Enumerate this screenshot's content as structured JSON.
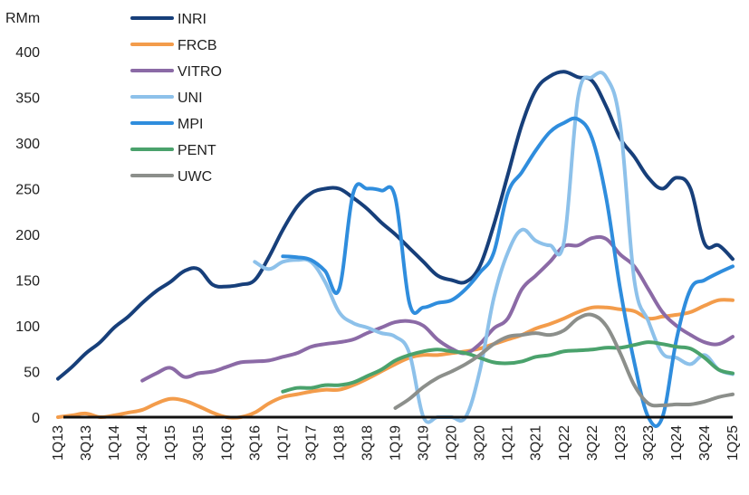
{
  "chart_data": {
    "type": "line",
    "ylabel": "RMm",
    "ylim": [
      0,
      400
    ],
    "y_ticks": [
      "0",
      "50",
      "100",
      "150",
      "200",
      "250",
      "300",
      "350",
      "400"
    ],
    "x_ticks": [
      "1Q13",
      "3Q13",
      "1Q14",
      "3Q14",
      "1Q15",
      "3Q15",
      "1Q16",
      "3Q16",
      "1Q17",
      "3Q17",
      "1Q18",
      "3Q18",
      "1Q19",
      "3Q19",
      "1Q20",
      "3Q20",
      "1Q21",
      "3Q21",
      "1Q22",
      "3Q22",
      "1Q23",
      "3Q23",
      "1Q24",
      "3Q24",
      "1Q25"
    ],
    "grid": false,
    "legend_position": "top-left",
    "series": [
      {
        "name": "INRI",
        "color": "#173f7a",
        "values": [
          [
            "1Q13",
            42
          ],
          [
            "2Q13",
            55
          ],
          [
            "3Q13",
            70
          ],
          [
            "4Q13",
            82
          ],
          [
            "1Q14",
            98
          ],
          [
            "2Q14",
            110
          ],
          [
            "3Q14",
            125
          ],
          [
            "4Q14",
            138
          ],
          [
            "1Q15",
            148
          ],
          [
            "2Q15",
            160
          ],
          [
            "3Q15",
            162
          ],
          [
            "4Q15",
            145
          ],
          [
            "1Q16",
            143
          ],
          [
            "2Q16",
            145
          ],
          [
            "3Q16",
            150
          ],
          [
            "4Q16",
            175
          ],
          [
            "1Q17",
            205
          ],
          [
            "2Q17",
            230
          ],
          [
            "3Q17",
            245
          ],
          [
            "4Q17",
            250
          ],
          [
            "1Q18",
            250
          ],
          [
            "2Q18",
            240
          ],
          [
            "3Q18",
            228
          ],
          [
            "4Q18",
            213
          ],
          [
            "1Q19",
            200
          ],
          [
            "2Q19",
            185
          ],
          [
            "3Q19",
            170
          ],
          [
            "4Q19",
            155
          ],
          [
            "1Q20",
            150
          ],
          [
            "2Q20",
            148
          ],
          [
            "3Q20",
            165
          ],
          [
            "4Q20",
            210
          ],
          [
            "1Q21",
            265
          ],
          [
            "2Q21",
            320
          ],
          [
            "3Q21",
            358
          ],
          [
            "4Q21",
            373
          ],
          [
            "1Q22",
            378
          ],
          [
            "2Q22",
            372
          ],
          [
            "3Q22",
            368
          ],
          [
            "4Q22",
            340
          ],
          [
            "1Q23",
            305
          ],
          [
            "2Q23",
            285
          ],
          [
            "3Q23",
            262
          ],
          [
            "4Q23",
            250
          ],
          [
            "1Q24",
            262
          ],
          [
            "2Q24",
            250
          ],
          [
            "3Q24",
            190
          ],
          [
            "4Q24",
            188
          ],
          [
            "1Q25",
            173
          ]
        ]
      },
      {
        "name": "FRCB",
        "color": "#f39c4b",
        "values": [
          [
            "1Q13",
            0
          ],
          [
            "2Q13",
            2
          ],
          [
            "3Q13",
            4
          ],
          [
            "4Q13",
            0
          ],
          [
            "1Q14",
            2
          ],
          [
            "2Q14",
            5
          ],
          [
            "3Q14",
            8
          ],
          [
            "4Q14",
            15
          ],
          [
            "1Q15",
            20
          ],
          [
            "2Q15",
            18
          ],
          [
            "3Q15",
            12
          ],
          [
            "4Q15",
            5
          ],
          [
            "1Q16",
            0
          ],
          [
            "2Q16",
            0
          ],
          [
            "3Q16",
            5
          ],
          [
            "4Q16",
            15
          ],
          [
            "1Q17",
            22
          ],
          [
            "2Q17",
            25
          ],
          [
            "3Q17",
            28
          ],
          [
            "4Q17",
            30
          ],
          [
            "1Q18",
            30
          ],
          [
            "2Q18",
            35
          ],
          [
            "3Q18",
            42
          ],
          [
            "4Q18",
            50
          ],
          [
            "1Q19",
            58
          ],
          [
            "2Q19",
            65
          ],
          [
            "3Q19",
            68
          ],
          [
            "4Q19",
            68
          ],
          [
            "1Q20",
            70
          ],
          [
            "2Q20",
            72
          ],
          [
            "3Q20",
            75
          ],
          [
            "4Q20",
            80
          ],
          [
            "1Q21",
            85
          ],
          [
            "2Q21",
            90
          ],
          [
            "3Q21",
            97
          ],
          [
            "4Q21",
            102
          ],
          [
            "1Q22",
            108
          ],
          [
            "2Q22",
            115
          ],
          [
            "3Q22",
            120
          ],
          [
            "4Q22",
            120
          ],
          [
            "1Q23",
            118
          ],
          [
            "2Q23",
            116
          ],
          [
            "3Q23",
            108
          ],
          [
            "4Q23",
            110
          ],
          [
            "1Q24",
            112
          ],
          [
            "2Q24",
            115
          ],
          [
            "3Q24",
            122
          ],
          [
            "4Q24",
            128
          ],
          [
            "1Q25",
            128
          ]
        ]
      },
      {
        "name": "VITRO",
        "color": "#8b6aa6",
        "values": [
          [
            "3Q14",
            40
          ],
          [
            "4Q14",
            48
          ],
          [
            "1Q15",
            54
          ],
          [
            "2Q15",
            44
          ],
          [
            "3Q15",
            48
          ],
          [
            "4Q15",
            50
          ],
          [
            "1Q16",
            55
          ],
          [
            "2Q16",
            60
          ],
          [
            "3Q16",
            61
          ],
          [
            "4Q16",
            62
          ],
          [
            "1Q17",
            66
          ],
          [
            "2Q17",
            70
          ],
          [
            "3Q17",
            77
          ],
          [
            "4Q17",
            80
          ],
          [
            "1Q18",
            82
          ],
          [
            "2Q18",
            85
          ],
          [
            "3Q18",
            92
          ],
          [
            "4Q18",
            98
          ],
          [
            "1Q19",
            104
          ],
          [
            "2Q19",
            105
          ],
          [
            "3Q19",
            100
          ],
          [
            "4Q19",
            85
          ],
          [
            "1Q20",
            75
          ],
          [
            "2Q20",
            70
          ],
          [
            "3Q20",
            80
          ],
          [
            "4Q20",
            97
          ],
          [
            "1Q21",
            108
          ],
          [
            "2Q21",
            140
          ],
          [
            "3Q21",
            155
          ],
          [
            "4Q21",
            170
          ],
          [
            "1Q22",
            187
          ],
          [
            "2Q22",
            188
          ],
          [
            "3Q22",
            196
          ],
          [
            "4Q22",
            195
          ],
          [
            "1Q23",
            178
          ],
          [
            "2Q23",
            165
          ],
          [
            "3Q23",
            140
          ],
          [
            "4Q23",
            115
          ],
          [
            "1Q24",
            100
          ],
          [
            "2Q24",
            90
          ],
          [
            "3Q24",
            82
          ],
          [
            "4Q24",
            80
          ],
          [
            "1Q25",
            88
          ]
        ]
      },
      {
        "name": "UNI",
        "color": "#8dc1ea",
        "values": [
          [
            "3Q16",
            170
          ],
          [
            "4Q16",
            162
          ],
          [
            "1Q17",
            170
          ],
          [
            "2Q17",
            172
          ],
          [
            "3Q17",
            170
          ],
          [
            "4Q17",
            148
          ],
          [
            "1Q18",
            115
          ],
          [
            "2Q18",
            103
          ],
          [
            "3Q18",
            98
          ],
          [
            "4Q18",
            92
          ],
          [
            "1Q19",
            88
          ],
          [
            "2Q19",
            70
          ],
          [
            "3Q19",
            0
          ],
          [
            "4Q19",
            0
          ],
          [
            "1Q20",
            0
          ],
          [
            "2Q20",
            0
          ],
          [
            "3Q20",
            50
          ],
          [
            "4Q20",
            130
          ],
          [
            "1Q21",
            180
          ],
          [
            "2Q21",
            205
          ],
          [
            "3Q21",
            193
          ],
          [
            "4Q21",
            188
          ],
          [
            "1Q22",
            192
          ],
          [
            "2Q22",
            350
          ],
          [
            "3Q22",
            372
          ],
          [
            "4Q22",
            372
          ],
          [
            "1Q23",
            320
          ],
          [
            "2Q23",
            150
          ],
          [
            "3Q23",
            105
          ],
          [
            "4Q23",
            70
          ],
          [
            "1Q24",
            65
          ],
          [
            "2Q24",
            58
          ],
          [
            "3Q24",
            68
          ],
          [
            "4Q24",
            52
          ],
          [
            "1Q25",
            47
          ]
        ]
      },
      {
        "name": "MPI",
        "color": "#2f8ddd",
        "values": [
          [
            "1Q17",
            176
          ],
          [
            "2Q17",
            175
          ],
          [
            "3Q17",
            172
          ],
          [
            "4Q17",
            160
          ],
          [
            "1Q18",
            140
          ],
          [
            "2Q18",
            245
          ],
          [
            "3Q18",
            250
          ],
          [
            "4Q18",
            248
          ],
          [
            "1Q19",
            240
          ],
          [
            "2Q19",
            125
          ],
          [
            "3Q19",
            120
          ],
          [
            "4Q19",
            125
          ],
          [
            "1Q20",
            128
          ],
          [
            "2Q20",
            140
          ],
          [
            "3Q20",
            158
          ],
          [
            "4Q20",
            180
          ],
          [
            "1Q21",
            245
          ],
          [
            "2Q21",
            268
          ],
          [
            "3Q21",
            292
          ],
          [
            "4Q21",
            312
          ],
          [
            "1Q22",
            322
          ],
          [
            "2Q22",
            326
          ],
          [
            "3Q22",
            305
          ],
          [
            "4Q22",
            240
          ],
          [
            "1Q23",
            140
          ],
          [
            "2Q23",
            60
          ],
          [
            "3Q23",
            0
          ],
          [
            "4Q23",
            0
          ],
          [
            "1Q24",
            85
          ],
          [
            "2Q24",
            140
          ],
          [
            "3Q24",
            150
          ],
          [
            "4Q24",
            158
          ],
          [
            "1Q25",
            165
          ]
        ]
      },
      {
        "name": "PENT",
        "color": "#4aa26c",
        "values": [
          [
            "1Q17",
            28
          ],
          [
            "2Q17",
            32
          ],
          [
            "3Q17",
            32
          ],
          [
            "4Q17",
            35
          ],
          [
            "1Q18",
            35
          ],
          [
            "2Q18",
            38
          ],
          [
            "3Q18",
            45
          ],
          [
            "4Q18",
            52
          ],
          [
            "1Q19",
            62
          ],
          [
            "2Q19",
            68
          ],
          [
            "3Q19",
            72
          ],
          [
            "4Q19",
            74
          ],
          [
            "1Q20",
            72
          ],
          [
            "2Q20",
            70
          ],
          [
            "3Q20",
            65
          ],
          [
            "4Q20",
            60
          ],
          [
            "1Q21",
            59
          ],
          [
            "2Q21",
            61
          ],
          [
            "3Q21",
            66
          ],
          [
            "4Q21",
            68
          ],
          [
            "1Q22",
            72
          ],
          [
            "2Q22",
            73
          ],
          [
            "3Q22",
            74
          ],
          [
            "4Q22",
            76
          ],
          [
            "1Q23",
            76
          ],
          [
            "2Q23",
            79
          ],
          [
            "3Q23",
            82
          ],
          [
            "4Q23",
            80
          ],
          [
            "1Q24",
            77
          ],
          [
            "2Q24",
            75
          ],
          [
            "3Q24",
            65
          ],
          [
            "4Q24",
            52
          ],
          [
            "1Q25",
            48
          ]
        ]
      },
      {
        "name": "UWC",
        "color": "#8c8f8b",
        "values": [
          [
            "1Q19",
            10
          ],
          [
            "2Q19",
            20
          ],
          [
            "3Q19",
            33
          ],
          [
            "4Q19",
            43
          ],
          [
            "1Q20",
            50
          ],
          [
            "2Q20",
            58
          ],
          [
            "3Q20",
            68
          ],
          [
            "4Q20",
            80
          ],
          [
            "1Q21",
            88
          ],
          [
            "2Q21",
            90
          ],
          [
            "3Q21",
            92
          ],
          [
            "4Q21",
            90
          ],
          [
            "1Q22",
            95
          ],
          [
            "2Q22",
            108
          ],
          [
            "3Q22",
            112
          ],
          [
            "4Q22",
            100
          ],
          [
            "1Q23",
            70
          ],
          [
            "2Q23",
            35
          ],
          [
            "3Q23",
            15
          ],
          [
            "4Q23",
            13
          ],
          [
            "1Q24",
            14
          ],
          [
            "2Q24",
            14
          ],
          [
            "3Q24",
            17
          ],
          [
            "4Q24",
            22
          ],
          [
            "1Q25",
            25
          ]
        ]
      }
    ]
  }
}
